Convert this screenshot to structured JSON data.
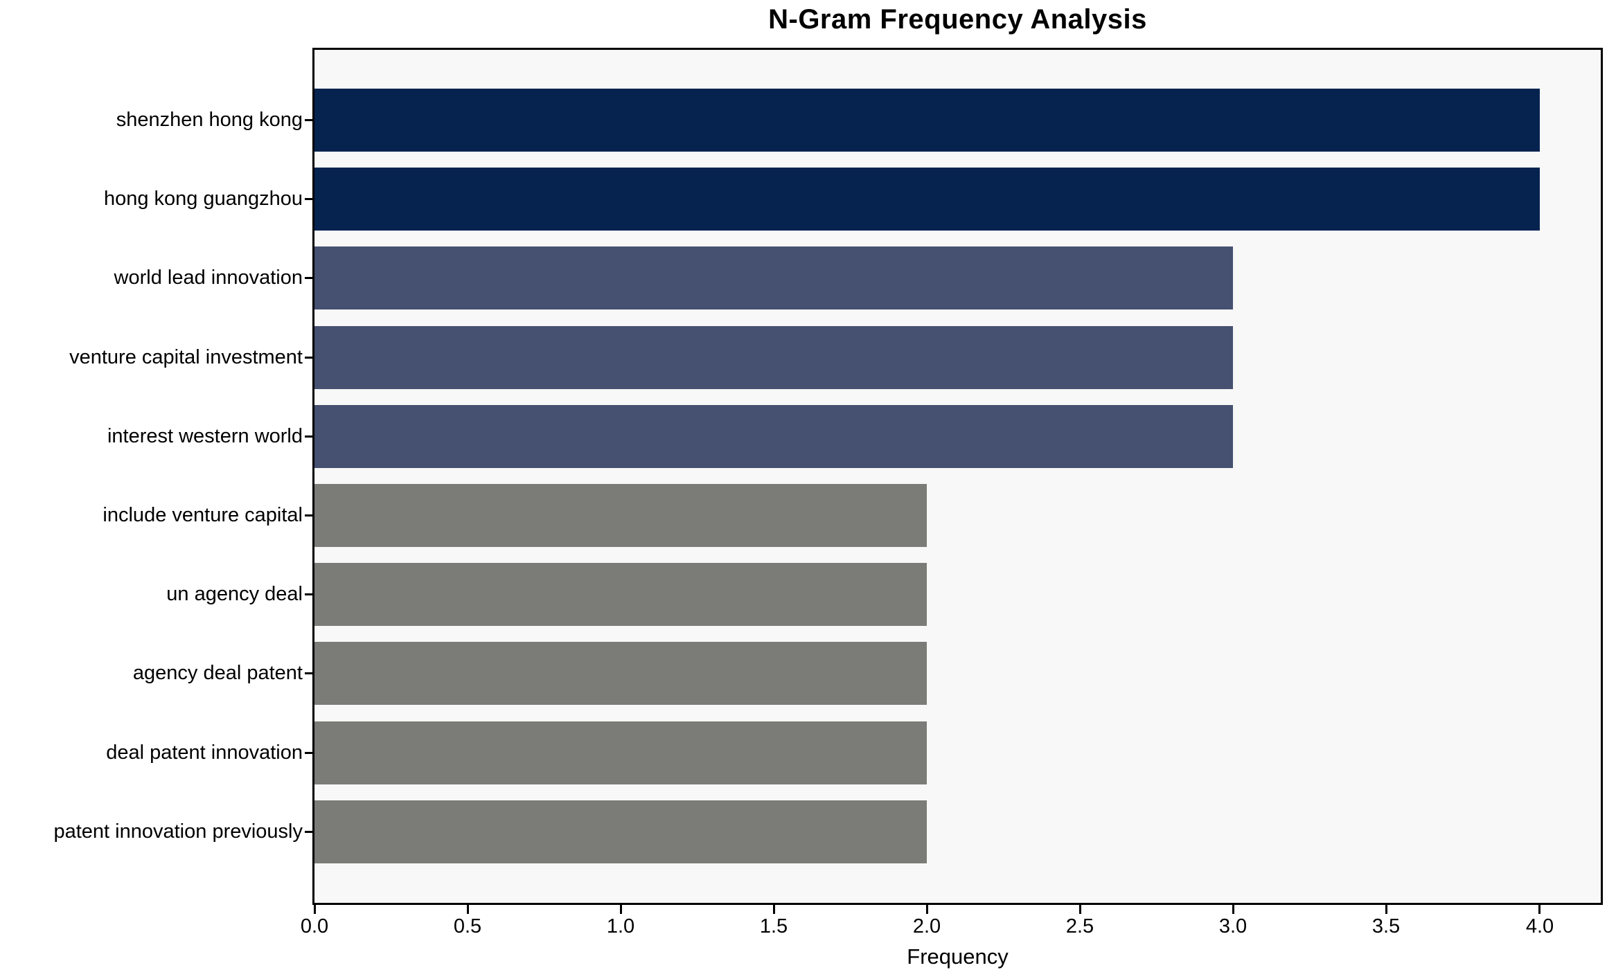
{
  "chart_data": {
    "type": "bar",
    "orientation": "horizontal",
    "title": "N-Gram Frequency Analysis",
    "xlabel": "Frequency",
    "ylabel": "",
    "categories": [
      "shenzhen hong kong",
      "hong kong guangzhou",
      "world lead innovation",
      "venture capital investment",
      "interest western world",
      "include venture capital",
      "un agency deal",
      "agency deal patent",
      "deal patent innovation",
      "patent innovation previously"
    ],
    "values": [
      4,
      4,
      3,
      3,
      3,
      2,
      2,
      2,
      2,
      2
    ],
    "bar_colors": [
      "#062350",
      "#062350",
      "#465070",
      "#465070",
      "#465070",
      "#7B7B77",
      "#7B7B77",
      "#7B7B77",
      "#7B7B77",
      "#7B7B77"
    ],
    "xticks": [
      "0.0",
      "0.5",
      "1.0",
      "1.5",
      "2.0",
      "2.5",
      "3.0",
      "3.5",
      "4.0"
    ],
    "xlim": [
      0,
      4.2
    ],
    "grid": false,
    "legend": null,
    "plot_background": "#F7F8F7",
    "figure_background": "#FFFFFF",
    "axis_color": "#000000"
  }
}
